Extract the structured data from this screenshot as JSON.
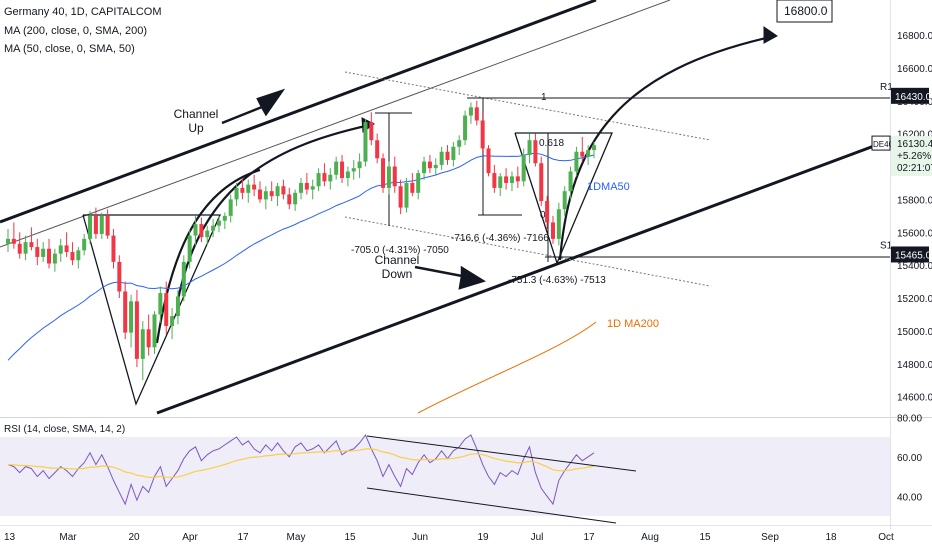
{
  "chart_data": {
    "type": "candlestick",
    "symbol": "Germany 40, 1D, CAPITALCOM",
    "indicators": [
      "MA (200, close, 0, SMA, 200)",
      "MA (50, close, 0, SMA, 50)"
    ],
    "ylim": [
      14450,
      17050
    ],
    "y_ticks": [
      "16800.0",
      "16600.0",
      "16400.0",
      "16200.0",
      "16000.0",
      "15800.0",
      "15600.0",
      "15400.0",
      "15200.0",
      "15000.0",
      "14800.0",
      "14600.0"
    ],
    "x_ticks": [
      "13",
      "Mar",
      "20",
      "Apr",
      "17",
      "May",
      "15",
      "Jun",
      "19",
      "Jul",
      "17",
      "Aug",
      "15",
      "Sep",
      "18",
      "Oct"
    ],
    "price_label": {
      "symbol": "DE40",
      "price": "16130.4",
      "change": "+5.26%",
      "countdown": "02:21:07",
      "value": 16130.4
    },
    "levels": [
      {
        "name": "R1",
        "label": "16430.0",
        "value": 16430
      },
      {
        "name": "S1",
        "label": "15465.0",
        "value": 15465
      }
    ],
    "target": {
      "label": "16800.0",
      "value": 16800
    },
    "annotations": {
      "channel_up": [
        "Channel",
        "Up"
      ],
      "channel_down": [
        "Channel",
        "Down"
      ],
      "dma50": "1DMA50",
      "ma200": "1D MA200",
      "fib_1": "1",
      "fib_0618": "0.618",
      "fib_0": "0",
      "drop1": "-705.0 (-4.31%) -7050",
      "drop2": "-716.6 (-4.36%) -7166",
      "drop3": "-751.3 (-4.63%) -7513"
    },
    "candles": [
      {
        "o": 15530,
        "h": 15620,
        "l": 15480,
        "c": 15560
      },
      {
        "o": 15560,
        "h": 15660,
        "l": 15500,
        "c": 15530
      },
      {
        "o": 15530,
        "h": 15600,
        "l": 15440,
        "c": 15470
      },
      {
        "o": 15470,
        "h": 15580,
        "l": 15430,
        "c": 15540
      },
      {
        "o": 15540,
        "h": 15630,
        "l": 15490,
        "c": 15510
      },
      {
        "o": 15510,
        "h": 15560,
        "l": 15400,
        "c": 15450
      },
      {
        "o": 15450,
        "h": 15540,
        "l": 15420,
        "c": 15500
      },
      {
        "o": 15500,
        "h": 15560,
        "l": 15380,
        "c": 15410
      },
      {
        "o": 15410,
        "h": 15500,
        "l": 15360,
        "c": 15470
      },
      {
        "o": 15470,
        "h": 15560,
        "l": 15420,
        "c": 15520
      },
      {
        "o": 15520,
        "h": 15600,
        "l": 15450,
        "c": 15480
      },
      {
        "o": 15480,
        "h": 15540,
        "l": 15400,
        "c": 15430
      },
      {
        "o": 15430,
        "h": 15510,
        "l": 15380,
        "c": 15490
      },
      {
        "o": 15490,
        "h": 15590,
        "l": 15460,
        "c": 15560
      },
      {
        "o": 15560,
        "h": 15730,
        "l": 15530,
        "c": 15700
      },
      {
        "o": 15700,
        "h": 15750,
        "l": 15560,
        "c": 15590
      },
      {
        "o": 15590,
        "h": 15720,
        "l": 15560,
        "c": 15700
      },
      {
        "o": 15700,
        "h": 15740,
        "l": 15560,
        "c": 15580
      },
      {
        "o": 15580,
        "h": 15620,
        "l": 15380,
        "c": 15420
      },
      {
        "o": 15420,
        "h": 15460,
        "l": 15200,
        "c": 15240
      },
      {
        "o": 15240,
        "h": 15300,
        "l": 14950,
        "c": 14990
      },
      {
        "o": 14990,
        "h": 15220,
        "l": 14900,
        "c": 15180
      },
      {
        "o": 15180,
        "h": 15250,
        "l": 14780,
        "c": 14830
      },
      {
        "o": 14830,
        "h": 15060,
        "l": 14700,
        "c": 15010
      },
      {
        "o": 15010,
        "h": 15100,
        "l": 14850,
        "c": 14900
      },
      {
        "o": 14900,
        "h": 15120,
        "l": 14860,
        "c": 15100
      },
      {
        "o": 15100,
        "h": 15270,
        "l": 15050,
        "c": 15230
      },
      {
        "o": 15230,
        "h": 15300,
        "l": 14980,
        "c": 15030
      },
      {
        "o": 15030,
        "h": 15140,
        "l": 14950,
        "c": 15090
      },
      {
        "o": 15090,
        "h": 15250,
        "l": 15040,
        "c": 15210
      },
      {
        "o": 15210,
        "h": 15460,
        "l": 15180,
        "c": 15420
      },
      {
        "o": 15420,
        "h": 15620,
        "l": 15380,
        "c": 15580
      },
      {
        "o": 15580,
        "h": 15700,
        "l": 15520,
        "c": 15650
      },
      {
        "o": 15650,
        "h": 15690,
        "l": 15540,
        "c": 15570
      },
      {
        "o": 15570,
        "h": 15640,
        "l": 15520,
        "c": 15610
      },
      {
        "o": 15610,
        "h": 15680,
        "l": 15570,
        "c": 15640
      },
      {
        "o": 15640,
        "h": 15700,
        "l": 15600,
        "c": 15670
      },
      {
        "o": 15670,
        "h": 15720,
        "l": 15620,
        "c": 15700
      },
      {
        "o": 15700,
        "h": 15830,
        "l": 15660,
        "c": 15800
      },
      {
        "o": 15800,
        "h": 15900,
        "l": 15760,
        "c": 15870
      },
      {
        "o": 15870,
        "h": 15930,
        "l": 15800,
        "c": 15840
      },
      {
        "o": 15840,
        "h": 15920,
        "l": 15780,
        "c": 15890
      },
      {
        "o": 15890,
        "h": 15950,
        "l": 15820,
        "c": 15860
      },
      {
        "o": 15860,
        "h": 15910,
        "l": 15780,
        "c": 15800
      },
      {
        "o": 15800,
        "h": 15880,
        "l": 15740,
        "c": 15850
      },
      {
        "o": 15850,
        "h": 15910,
        "l": 15790,
        "c": 15820
      },
      {
        "o": 15820,
        "h": 15900,
        "l": 15760,
        "c": 15880
      },
      {
        "o": 15880,
        "h": 15920,
        "l": 15800,
        "c": 15830
      },
      {
        "o": 15830,
        "h": 15870,
        "l": 15740,
        "c": 15770
      },
      {
        "o": 15770,
        "h": 15860,
        "l": 15730,
        "c": 15840
      },
      {
        "o": 15840,
        "h": 15930,
        "l": 15800,
        "c": 15900
      },
      {
        "o": 15900,
        "h": 15960,
        "l": 15830,
        "c": 15860
      },
      {
        "o": 15860,
        "h": 15920,
        "l": 15800,
        "c": 15880
      },
      {
        "o": 15880,
        "h": 15990,
        "l": 15850,
        "c": 15960
      },
      {
        "o": 15960,
        "h": 16020,
        "l": 15880,
        "c": 15910
      },
      {
        "o": 15910,
        "h": 15990,
        "l": 15860,
        "c": 15950
      },
      {
        "o": 15950,
        "h": 16060,
        "l": 15920,
        "c": 16030
      },
      {
        "o": 16030,
        "h": 16070,
        "l": 15900,
        "c": 15930
      },
      {
        "o": 15930,
        "h": 16000,
        "l": 15880,
        "c": 15970
      },
      {
        "o": 15970,
        "h": 16040,
        "l": 15920,
        "c": 15990
      },
      {
        "o": 15990,
        "h": 16080,
        "l": 15930,
        "c": 16030
      },
      {
        "o": 16030,
        "h": 16290,
        "l": 16000,
        "c": 16270
      },
      {
        "o": 16270,
        "h": 16330,
        "l": 16130,
        "c": 16160
      },
      {
        "o": 16160,
        "h": 16200,
        "l": 16020,
        "c": 16050
      },
      {
        "o": 16050,
        "h": 16080,
        "l": 15840,
        "c": 15870
      },
      {
        "o": 15870,
        "h": 16030,
        "l": 15830,
        "c": 16000
      },
      {
        "o": 16000,
        "h": 16060,
        "l": 15840,
        "c": 15880
      },
      {
        "o": 15880,
        "h": 15920,
        "l": 15710,
        "c": 15750
      },
      {
        "o": 15750,
        "h": 15930,
        "l": 15720,
        "c": 15900
      },
      {
        "o": 15900,
        "h": 15960,
        "l": 15820,
        "c": 15840
      },
      {
        "o": 15840,
        "h": 15980,
        "l": 15800,
        "c": 15960
      },
      {
        "o": 15960,
        "h": 16060,
        "l": 15920,
        "c": 16030
      },
      {
        "o": 16030,
        "h": 16070,
        "l": 15960,
        "c": 15990
      },
      {
        "o": 15990,
        "h": 16050,
        "l": 15950,
        "c": 16010
      },
      {
        "o": 16010,
        "h": 16120,
        "l": 15980,
        "c": 16090
      },
      {
        "o": 16090,
        "h": 16130,
        "l": 16010,
        "c": 16040
      },
      {
        "o": 16040,
        "h": 16150,
        "l": 16000,
        "c": 16120
      },
      {
        "o": 16120,
        "h": 16190,
        "l": 16070,
        "c": 16160
      },
      {
        "o": 16160,
        "h": 16340,
        "l": 16130,
        "c": 16310
      },
      {
        "o": 16310,
        "h": 16390,
        "l": 16260,
        "c": 16360
      },
      {
        "o": 16360,
        "h": 16400,
        "l": 16250,
        "c": 16280
      },
      {
        "o": 16280,
        "h": 16330,
        "l": 16080,
        "c": 16110
      },
      {
        "o": 16110,
        "h": 16130,
        "l": 15940,
        "c": 15960
      },
      {
        "o": 15960,
        "h": 16010,
        "l": 15840,
        "c": 15870
      },
      {
        "o": 15870,
        "h": 15960,
        "l": 15820,
        "c": 15940
      },
      {
        "o": 15940,
        "h": 15990,
        "l": 15860,
        "c": 15900
      },
      {
        "o": 15900,
        "h": 15970,
        "l": 15850,
        "c": 15940
      },
      {
        "o": 15940,
        "h": 16000,
        "l": 15870,
        "c": 15910
      },
      {
        "o": 15910,
        "h": 16110,
        "l": 15880,
        "c": 16070
      },
      {
        "o": 16070,
        "h": 16200,
        "l": 16020,
        "c": 16160
      },
      {
        "o": 16160,
        "h": 16200,
        "l": 16000,
        "c": 16020
      },
      {
        "o": 16020,
        "h": 16060,
        "l": 15760,
        "c": 15790
      },
      {
        "o": 15790,
        "h": 15820,
        "l": 15620,
        "c": 15660
      },
      {
        "o": 15660,
        "h": 15700,
        "l": 15530,
        "c": 15560
      },
      {
        "o": 15560,
        "h": 15780,
        "l": 15520,
        "c": 15740
      },
      {
        "o": 15740,
        "h": 15880,
        "l": 15700,
        "c": 15850
      },
      {
        "o": 15850,
        "h": 16000,
        "l": 15800,
        "c": 15970
      },
      {
        "o": 15970,
        "h": 16120,
        "l": 15940,
        "c": 16090
      },
      {
        "o": 16090,
        "h": 16180,
        "l": 16030,
        "c": 16060
      },
      {
        "o": 16060,
        "h": 16130,
        "l": 16010,
        "c": 16100
      },
      {
        "o": 16100,
        "h": 16150,
        "l": 16050,
        "c": 16130
      }
    ],
    "rsi": {
      "label": "RSI (14, close, SMA, 14, 2)",
      "ticks": [
        "80.00",
        "60.00",
        "40.00"
      ],
      "ylim": [
        28,
        82
      ],
      "values": [
        56,
        55,
        52,
        55,
        54,
        50,
        53,
        49,
        52,
        55,
        53,
        50,
        54,
        57,
        62,
        56,
        61,
        55,
        48,
        42,
        36,
        46,
        38,
        45,
        42,
        50,
        55,
        45,
        49,
        53,
        59,
        63,
        65,
        58,
        61,
        63,
        64,
        66,
        68,
        70,
        66,
        68,
        64,
        62,
        66,
        63,
        67,
        63,
        60,
        65,
        67,
        63,
        64,
        66,
        62,
        65,
        68,
        61,
        63,
        64,
        67,
        71,
        64,
        58,
        50,
        56,
        50,
        45,
        54,
        51,
        57,
        61,
        57,
        59,
        63,
        59,
        63,
        65,
        69,
        71,
        64,
        56,
        50,
        46,
        52,
        50,
        53,
        51,
        59,
        65,
        52,
        44,
        40,
        36,
        48,
        53,
        57,
        61,
        58,
        60,
        62
      ]
    }
  }
}
